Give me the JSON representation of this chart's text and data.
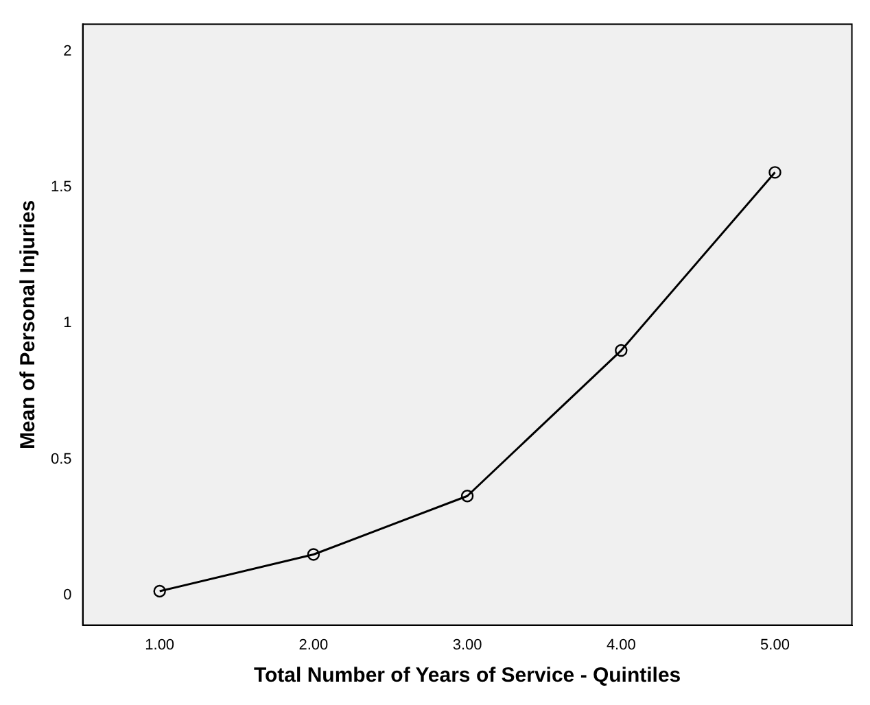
{
  "chart_data": {
    "type": "line",
    "xlabel": "Total Number of Years of Service - Quintiles",
    "ylabel": "Mean of Personal Injuries",
    "categories": [
      "1.00",
      "2.00",
      "3.00",
      "4.00",
      "5.00"
    ],
    "series": [
      {
        "color": "#000000",
        "values": [
          0.015,
          0.15,
          0.365,
          0.9,
          1.555
        ]
      }
    ],
    "ylim": [
      -0.11,
      2.1
    ],
    "yticks": [
      0,
      0.5,
      1,
      1.5,
      2
    ],
    "grid": false,
    "legend": false,
    "marker": "circle",
    "line_style": "solid"
  }
}
